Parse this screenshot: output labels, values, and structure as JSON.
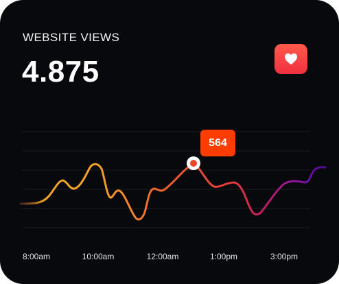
{
  "widget": {
    "title": "WEBSITE VIEWS",
    "value": "4.875",
    "icon": "heart-icon"
  },
  "colors": {
    "background": "#07090d",
    "tooltip": "#fd3d00",
    "like_button": "#f23a42",
    "gradient": [
      "#f3a51d",
      "#f5a227",
      "#ee5b2b",
      "#e3383a",
      "#c31e5a",
      "#8b12a8",
      "#6a0ed0"
    ]
  },
  "chart_data": {
    "type": "line",
    "x_tick_labels": [
      "8:00am",
      "10:00am",
      "12:00am",
      "1:00pm",
      "3:00pm"
    ],
    "highlight": {
      "label": "564"
    },
    "grid": true,
    "grid_lines": 6
  }
}
